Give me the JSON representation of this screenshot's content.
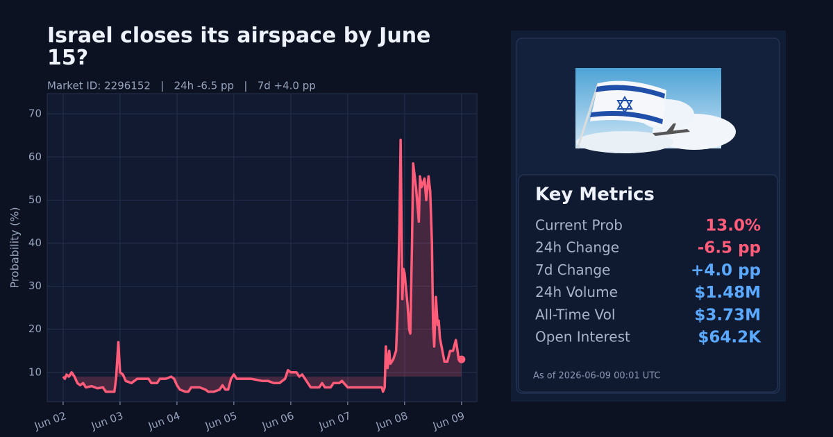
{
  "chart_data": {
    "type": "line",
    "title": "Israel closes its airspace by June 15?",
    "subtitle": "Market ID: 2296152   |   24h -6.5 pp   |   7d +4.0 pp",
    "y_label": "Probability (%)",
    "xlim": [
      -0.28,
      7.27
    ],
    "xticks": [
      {
        "value": 0,
        "label": "Jun 02"
      },
      {
        "value": 1,
        "label": "Jun 03"
      },
      {
        "value": 2,
        "label": "Jun 04"
      },
      {
        "value": 3,
        "label": "Jun 05"
      },
      {
        "value": 4,
        "label": "Jun 06"
      },
      {
        "value": 5,
        "label": "Jun 07"
      },
      {
        "value": 6,
        "label": "Jun 08"
      },
      {
        "value": 7,
        "label": "Jun 09"
      }
    ],
    "ylim": [
      3.2,
      74.7
    ],
    "yticks": [
      10,
      20,
      30,
      40,
      50,
      60,
      70
    ],
    "grid": true,
    "area_baseline": 9,
    "series": [
      {
        "color": "#ff5c7a",
        "x": [
          0,
          0.03,
          0.06,
          0.1,
          0.15,
          0.2,
          0.25,
          0.3,
          0.35,
          0.4,
          0.5,
          0.6,
          0.7,
          0.75,
          0.85,
          0.9,
          0.93,
          0.97,
          1.0,
          1.05,
          1.1,
          1.2,
          1.3,
          1.5,
          1.55,
          1.65,
          1.7,
          1.8,
          1.9,
          1.95,
          2.0,
          2.05,
          2.15,
          2.2,
          2.25,
          2.4,
          2.5,
          2.55,
          2.65,
          2.75,
          2.8,
          2.85,
          2.9,
          2.95,
          3.0,
          3.05,
          3.15,
          3.3,
          3.5,
          3.6,
          3.7,
          3.8,
          3.85,
          3.9,
          3.95,
          4.0,
          4.1,
          4.15,
          4.2,
          4.25,
          4.3,
          4.35,
          4.45,
          4.5,
          4.55,
          4.6,
          4.7,
          4.75,
          4.85,
          4.9,
          5.0,
          5.1,
          5.3,
          5.5,
          5.6,
          5.62,
          5.65,
          5.67,
          5.7,
          5.73,
          5.75,
          5.8,
          5.85,
          5.88,
          5.91,
          5.93,
          5.96,
          5.98,
          6.0,
          6.05,
          6.08,
          6.1,
          6.13,
          6.15,
          6.2,
          6.25,
          6.27,
          6.3,
          6.35,
          6.38,
          6.42,
          6.45,
          6.48,
          6.5,
          6.52,
          6.55,
          6.58,
          6.6,
          6.62,
          6.7,
          6.75,
          6.8,
          6.85,
          6.9,
          6.93,
          6.95,
          7.0
        ],
        "values": [
          9,
          8.5,
          9.5,
          9,
          10,
          9,
          7.5,
          7,
          7.5,
          6.5,
          6.8,
          6.3,
          6.5,
          5.5,
          5.5,
          5.5,
          8.5,
          17,
          10,
          9.5,
          8,
          7.5,
          8.5,
          8.5,
          7.5,
          7.5,
          8.5,
          8.5,
          9,
          8.5,
          7,
          6,
          5.5,
          5.5,
          6.5,
          6.5,
          6,
          5.5,
          5.5,
          6,
          7,
          6,
          6,
          8.5,
          9.5,
          8.5,
          8.5,
          8.5,
          8,
          8,
          7.5,
          7.5,
          8,
          8.5,
          10.5,
          10,
          10,
          9,
          9.5,
          8.5,
          7.5,
          6.5,
          6.5,
          6.5,
          7.5,
          6.5,
          6.5,
          7.5,
          7.5,
          8,
          6.5,
          6.5,
          6.5,
          6.5,
          6.5,
          5.5,
          6.5,
          16,
          11,
          15,
          12,
          13,
          15,
          25,
          45,
          64,
          27,
          34,
          33,
          26,
          20,
          19,
          40,
          58.5,
          53,
          45,
          55.5,
          53,
          55,
          50,
          55.5,
          52,
          40,
          21,
          16,
          27.5,
          21,
          22,
          18,
          12.5,
          12.5,
          15,
          15,
          17.5,
          15,
          13,
          13
        ]
      }
    ]
  },
  "panel": {
    "title": "Key Metrics",
    "metrics": [
      {
        "label": "Current Prob",
        "value": "13.0%",
        "color": "#ff5c7a"
      },
      {
        "label": "24h Change",
        "value": "-6.5 pp",
        "color": "#ff5c7a"
      },
      {
        "label": "7d Change",
        "value": "+4.0 pp",
        "color": "#5aa9ff"
      },
      {
        "label": "24h Volume",
        "value": "$1.48M",
        "color": "#5aa9ff"
      },
      {
        "label": "All-Time Vol",
        "value": "$3.73M",
        "color": "#5aa9ff"
      },
      {
        "label": "Open Interest",
        "value": "$64.2K",
        "color": "#5aa9ff"
      }
    ],
    "footer": "As of 2026-06-09 00:01 UTC"
  }
}
